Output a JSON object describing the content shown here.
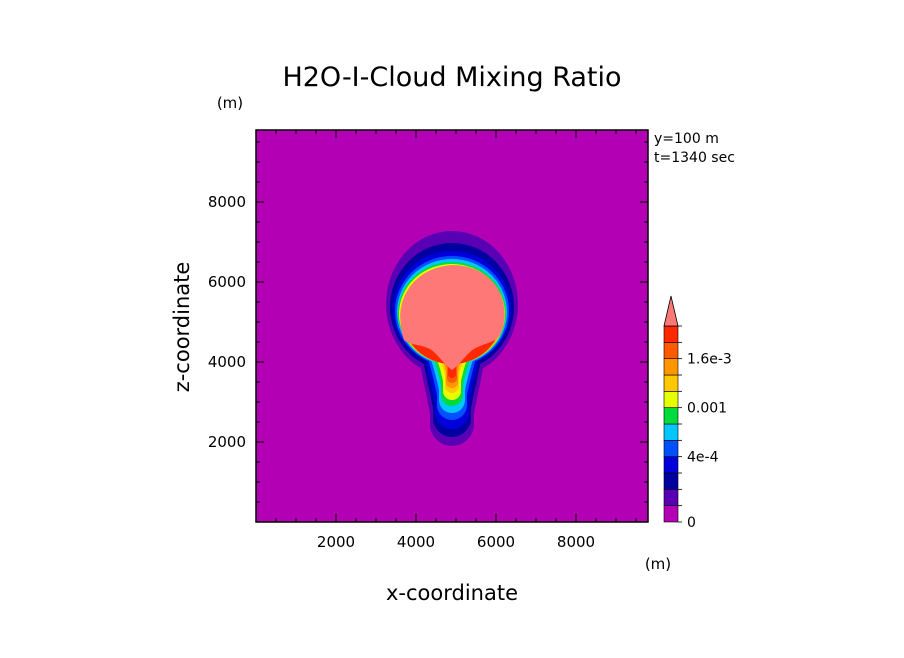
{
  "chart_data": {
    "type": "contour",
    "title": "H2O-I-Cloud Mixing Ratio",
    "xlabel": "x-coordinate",
    "ylabel": "z-coordinate",
    "xunit": "(m)",
    "yunit": "(m)",
    "annotations": [
      "y=100 m",
      "t=1340 sec"
    ],
    "xlim": [
      0,
      9800
    ],
    "ylim": [
      0,
      9800
    ],
    "xticks": [
      2000,
      4000,
      6000,
      8000
    ],
    "yticks": [
      2000,
      4000,
      6000,
      8000
    ],
    "xtick_labels": [
      "2000",
      "4000",
      "6000",
      "8000"
    ],
    "ytick_labels": [
      "2000",
      "4000",
      "6000",
      "8000"
    ],
    "background_color": "#b400b4",
    "levels": [
      {
        "value": 0.0,
        "color": "#b400b4"
      },
      {
        "value": 0.0001,
        "color": "#5a00b4"
      },
      {
        "value": 0.0002,
        "color": "#0000a0"
      },
      {
        "value": 0.0003,
        "color": "#0000dc"
      },
      {
        "value": 0.0004,
        "color": "#0050ff"
      },
      {
        "value": 0.0006,
        "color": "#00c8ff"
      },
      {
        "value": 0.0008,
        "color": "#00dc3c"
      },
      {
        "value": 0.001,
        "color": "#e6ff00"
      },
      {
        "value": 0.0012,
        "color": "#ffc800"
      },
      {
        "value": 0.0014,
        "color": "#ff9600"
      },
      {
        "value": 0.0016,
        "color": "#ff5a00"
      },
      {
        "value": 0.0018,
        "color": "#ff2800"
      },
      {
        "value": 0.002,
        "color": "#ff7878"
      }
    ],
    "colorbar_labels": [
      {
        "text": "0",
        "value": 0.0
      },
      {
        "text": "4e-4",
        "value": 0.0004
      },
      {
        "text": "0.001",
        "value": 0.001
      },
      {
        "text": "1.6e-3",
        "value": 0.0016
      }
    ],
    "colorbar_extend": "max"
  }
}
